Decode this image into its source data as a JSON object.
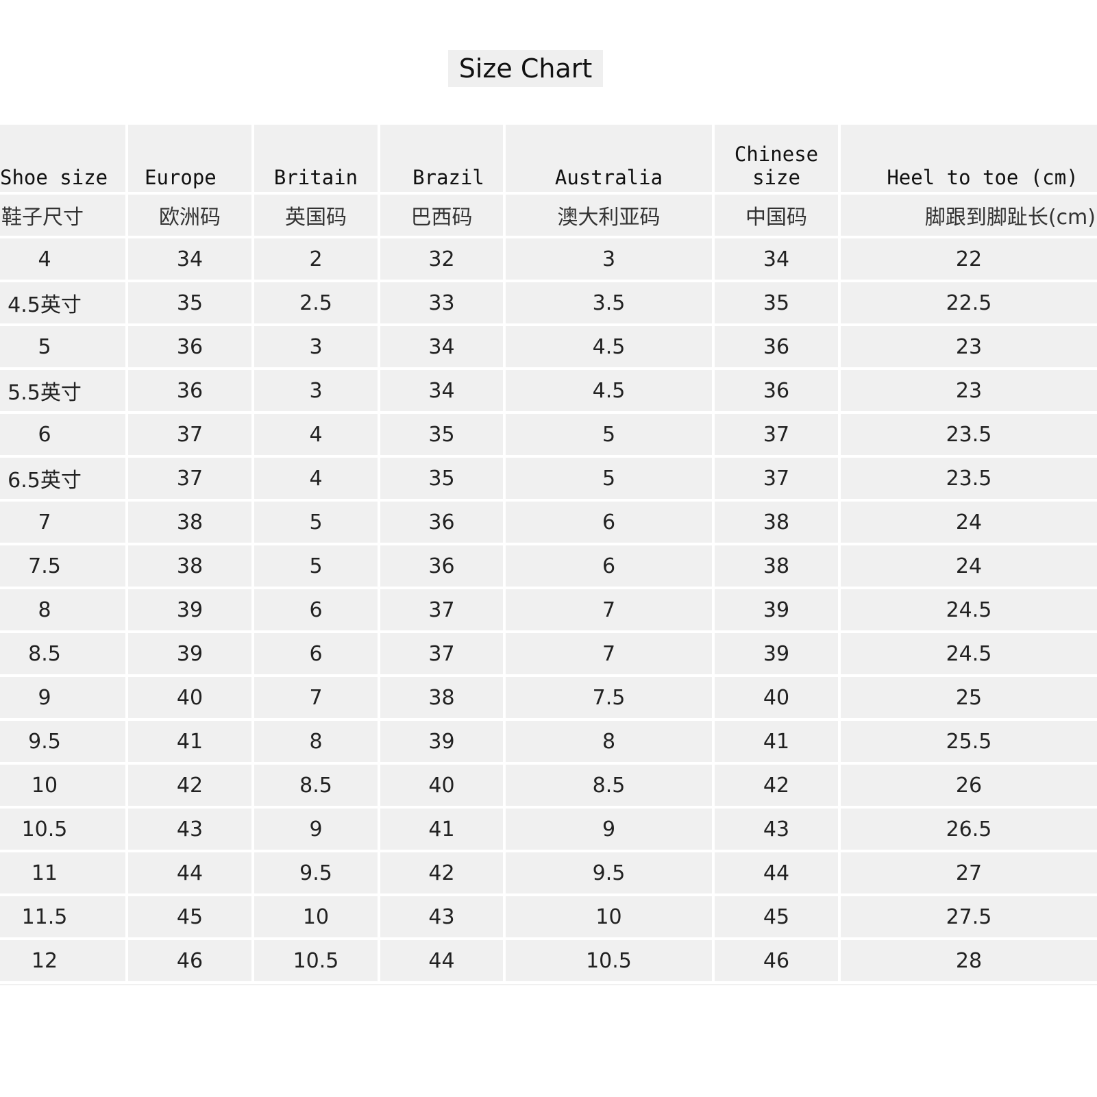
{
  "title": "Size Chart",
  "headers_en": [
    "Shoe size",
    "Europe",
    "Britain",
    "Brazil",
    "Australia",
    "Chinese size",
    "Heel to toe (cm)"
  ],
  "headers_zh": [
    "鞋子尺寸",
    "欧洲码",
    "英国码",
    "巴西码",
    "澳大利亚码",
    "中国码",
    "脚跟到脚趾长(cm)"
  ],
  "rows": [
    [
      "4",
      "34",
      "2",
      "32",
      "3",
      "34",
      "22"
    ],
    [
      "4.5英寸",
      "35",
      "2.5",
      "33",
      "3.5",
      "35",
      "22.5"
    ],
    [
      "5",
      "36",
      "3",
      "34",
      "4.5",
      "36",
      "23"
    ],
    [
      "5.5英寸",
      "36",
      "3",
      "34",
      "4.5",
      "36",
      "23"
    ],
    [
      "6",
      "37",
      "4",
      "35",
      "5",
      "37",
      "23.5"
    ],
    [
      "6.5英寸",
      "37",
      "4",
      "35",
      "5",
      "37",
      "23.5"
    ],
    [
      "7",
      "38",
      "5",
      "36",
      "6",
      "38",
      "24"
    ],
    [
      "7.5",
      "38",
      "5",
      "36",
      "6",
      "38",
      "24"
    ],
    [
      "8",
      "39",
      "6",
      "37",
      "7",
      "39",
      "24.5"
    ],
    [
      "8.5",
      "39",
      "6",
      "37",
      "7",
      "39",
      "24.5"
    ],
    [
      "9",
      "40",
      "7",
      "38",
      "7.5",
      "40",
      "25"
    ],
    [
      "9.5",
      "41",
      "8",
      "39",
      "8",
      "41",
      "25.5"
    ],
    [
      "10",
      "42",
      "8.5",
      "40",
      "8.5",
      "42",
      "26"
    ],
    [
      "10.5",
      "43",
      "9",
      "41",
      "9",
      "43",
      "26.5"
    ],
    [
      "11",
      "44",
      "9.5",
      "42",
      "9.5",
      "44",
      "27"
    ],
    [
      "11.5",
      "45",
      "10",
      "43",
      "10",
      "45",
      "27.5"
    ],
    [
      "12",
      "46",
      "10.5",
      "44",
      "10.5",
      "46",
      "28"
    ]
  ],
  "colors": {
    "table_bg": "#f0f0f0",
    "grid_line": "#ffffff",
    "title_bg": "#efefef"
  }
}
